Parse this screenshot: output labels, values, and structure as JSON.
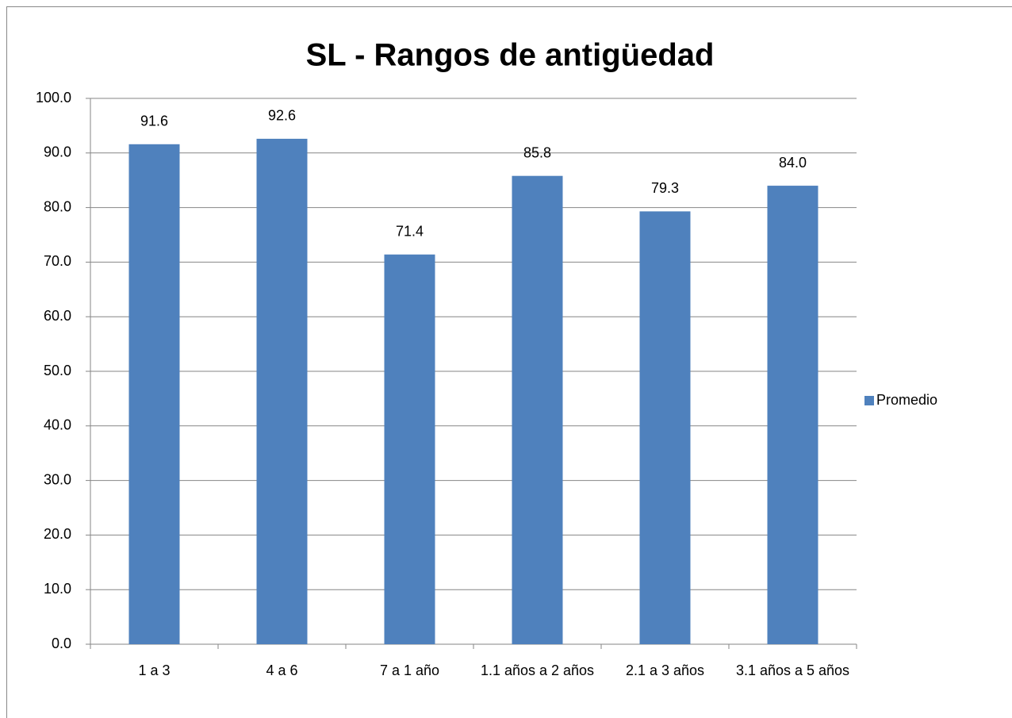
{
  "chart_data": {
    "type": "bar",
    "title": "SL - Rangos de antigüedad",
    "categories": [
      "1 a 3",
      "4 a 6",
      "7 a 1 año",
      "1.1 años a 2 años",
      "2.1 a 3 años",
      "3.1 años a 5 años"
    ],
    "series": [
      {
        "name": "Promedio",
        "color": "#4f81bd",
        "values": [
          91.6,
          92.6,
          71.4,
          85.8,
          79.3,
          84.0
        ],
        "value_labels": [
          "91.6",
          "92.6",
          "71.4",
          "85.8",
          "79.3",
          "84.0"
        ]
      }
    ],
    "ylim": [
      0,
      100
    ],
    "yticks": [
      {
        "value": 0,
        "label": "0.0"
      },
      {
        "value": 10,
        "label": "10.0"
      },
      {
        "value": 20,
        "label": "20.0"
      },
      {
        "value": 30,
        "label": "30.0"
      },
      {
        "value": 40,
        "label": "40.0"
      },
      {
        "value": 50,
        "label": "50.0"
      },
      {
        "value": 60,
        "label": "60.0"
      },
      {
        "value": 70,
        "label": "70.0"
      },
      {
        "value": 80,
        "label": "80.0"
      },
      {
        "value": 90,
        "label": "90.0"
      },
      {
        "value": 100,
        "label": "100.0"
      }
    ],
    "grid": true,
    "legend": "right"
  }
}
